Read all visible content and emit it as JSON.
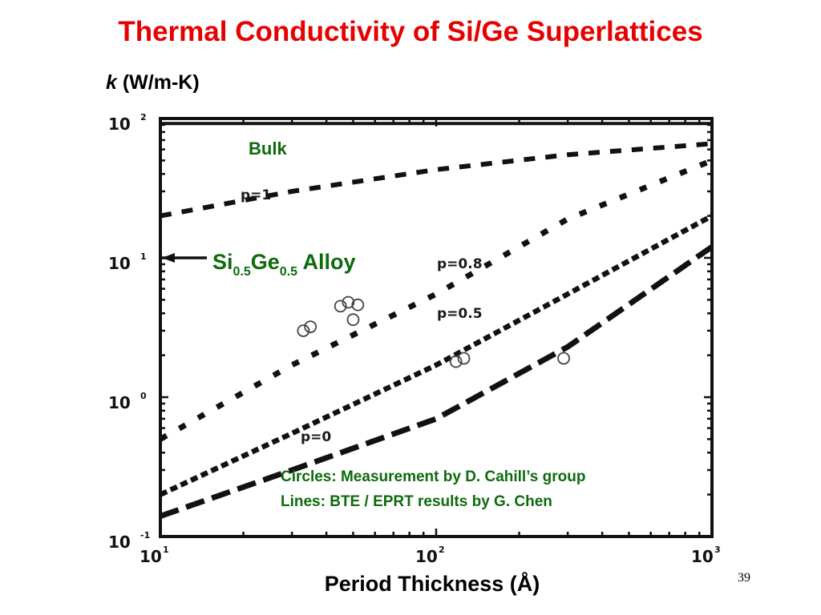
{
  "slide": {
    "title": "Thermal Conductivity of Si/Ge Superlattices",
    "y_axis_symbol": "k",
    "y_axis_unit": "(W/m-K)",
    "x_axis_label": "Period Thickness (Å)",
    "page_number": "39"
  },
  "annotations": {
    "bulk": "Bulk",
    "alloy": {
      "base1": "Si",
      "sub1": "0.5",
      "base2": "Ge",
      "sub2": "0.5",
      "suffix": " Alloy"
    },
    "note_circles": "Circles: Measurement by D. Cahill’s group",
    "note_lines": "Lines: BTE / EPRT results by G. Chen"
  },
  "colors": {
    "title": "#e60000",
    "annotation_green": "#0d6b0d",
    "ink": "#111111"
  },
  "chart_data": {
    "type": "line",
    "x_scale": "log",
    "y_scale": "log",
    "xlim": [
      10,
      1000
    ],
    "ylim": [
      0.1,
      100
    ],
    "grid": false,
    "x_ticks": [
      {
        "base": "10",
        "exp": "1",
        "value": 10
      },
      {
        "base": "10",
        "exp": "2",
        "value": 100
      },
      {
        "base": "10",
        "exp": "3",
        "value": 1000
      }
    ],
    "y_ticks": [
      {
        "base": "10",
        "exp": "-1",
        "value": 0.1
      },
      {
        "base": "10",
        "exp": "0",
        "value": 1
      },
      {
        "base": "10",
        "exp": "1",
        "value": 10
      },
      {
        "base": "10",
        "exp": "2",
        "value": 100
      }
    ],
    "series": [
      {
        "name": "p=1",
        "x": [
          10,
          30,
          100,
          300,
          1000
        ],
        "y": [
          20,
          30,
          43,
          55,
          66
        ]
      },
      {
        "name": "p=0.8",
        "x": [
          10,
          30,
          100,
          300,
          1000
        ],
        "y": [
          0.5,
          1.7,
          5.5,
          19,
          50
        ]
      },
      {
        "name": "p=0.5",
        "x": [
          10,
          30,
          100,
          300,
          1000
        ],
        "y": [
          0.2,
          0.55,
          1.7,
          5.5,
          20
        ]
      },
      {
        "name": "p=0",
        "x": [
          10,
          30,
          100,
          300,
          1000
        ],
        "y": [
          0.14,
          0.3,
          0.7,
          2.3,
          12
        ]
      }
    ],
    "measurements": {
      "x": [
        33,
        35,
        45,
        48,
        50,
        52,
        118,
        126,
        290
      ],
      "y": [
        3.0,
        3.2,
        4.5,
        4.8,
        3.6,
        4.6,
        1.8,
        1.9,
        1.9
      ]
    },
    "reference_lines": [
      {
        "label": "Bulk",
        "y": 92
      },
      {
        "label": "Alloy",
        "y": 10
      }
    ]
  }
}
